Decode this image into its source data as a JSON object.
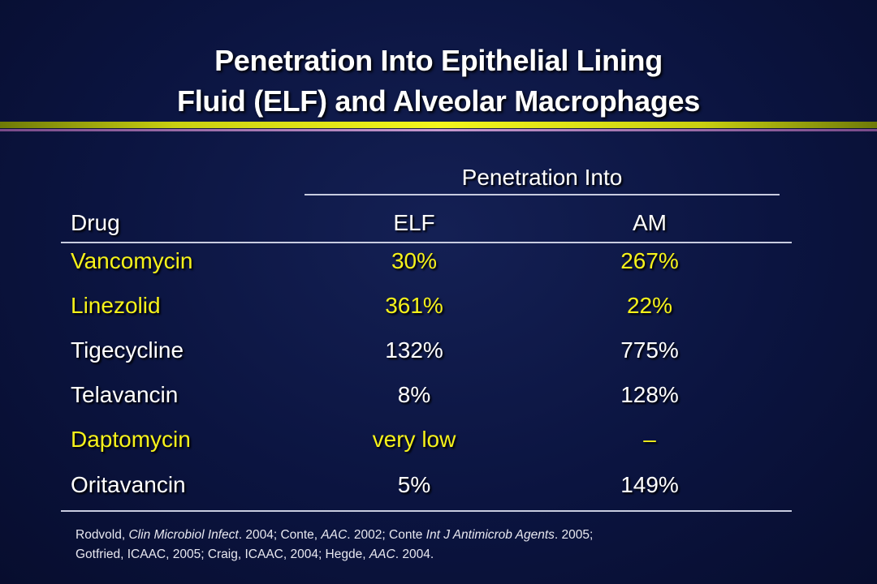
{
  "slide": {
    "title_line1": "Penetration Into Epithelial Lining",
    "title_line2": "Fluid (ELF) and Alveolar Macrophages",
    "group_header": "Penetration Into",
    "columns": {
      "drug": "Drug",
      "elf": "ELF",
      "am": "AM"
    },
    "rows": [
      {
        "drug": "Vancomycin",
        "elf": "30%",
        "am": "267%",
        "color": "#f6f21a"
      },
      {
        "drug": "Linezolid",
        "elf": "361%",
        "am": "22%",
        "color": "#f6f21a"
      },
      {
        "drug": "Tigecycline",
        "elf": "132%",
        "am": "775%",
        "color": "#ffffff"
      },
      {
        "drug": "Telavancin",
        "elf": "8%",
        "am": "128%",
        "color": "#ffffff"
      },
      {
        "drug": "Daptomycin",
        "elf": "very low",
        "am": "–",
        "color": "#f6f21a"
      },
      {
        "drug": "Oritavancin",
        "elf": "5%",
        "am": "149%",
        "color": "#ffffff"
      }
    ],
    "footnote": {
      "line1": [
        {
          "text": "Rodvold, ",
          "italic": false
        },
        {
          "text": "Clin Microbiol Infect",
          "italic": true
        },
        {
          "text": ". 2004; Conte, ",
          "italic": false
        },
        {
          "text": "AAC",
          "italic": true
        },
        {
          "text": ". 2002; Conte ",
          "italic": false
        },
        {
          "text": "Int J Antimicrob Agents",
          "italic": true
        },
        {
          "text": ". 2005;",
          "italic": false
        }
      ],
      "line2": [
        {
          "text": "Gotfried, ICAAC, 2005; Craig, ICAAC, 2004; Hegde, ",
          "italic": false
        },
        {
          "text": "AAC",
          "italic": true
        },
        {
          "text": ". 2004.",
          "italic": false
        }
      ]
    },
    "colors": {
      "background": "#0b1440",
      "highlight": "#f6f21a",
      "text": "#ffffff",
      "rule_gold": "#f3f51c",
      "rule_pink": "#c89ad0"
    }
  }
}
